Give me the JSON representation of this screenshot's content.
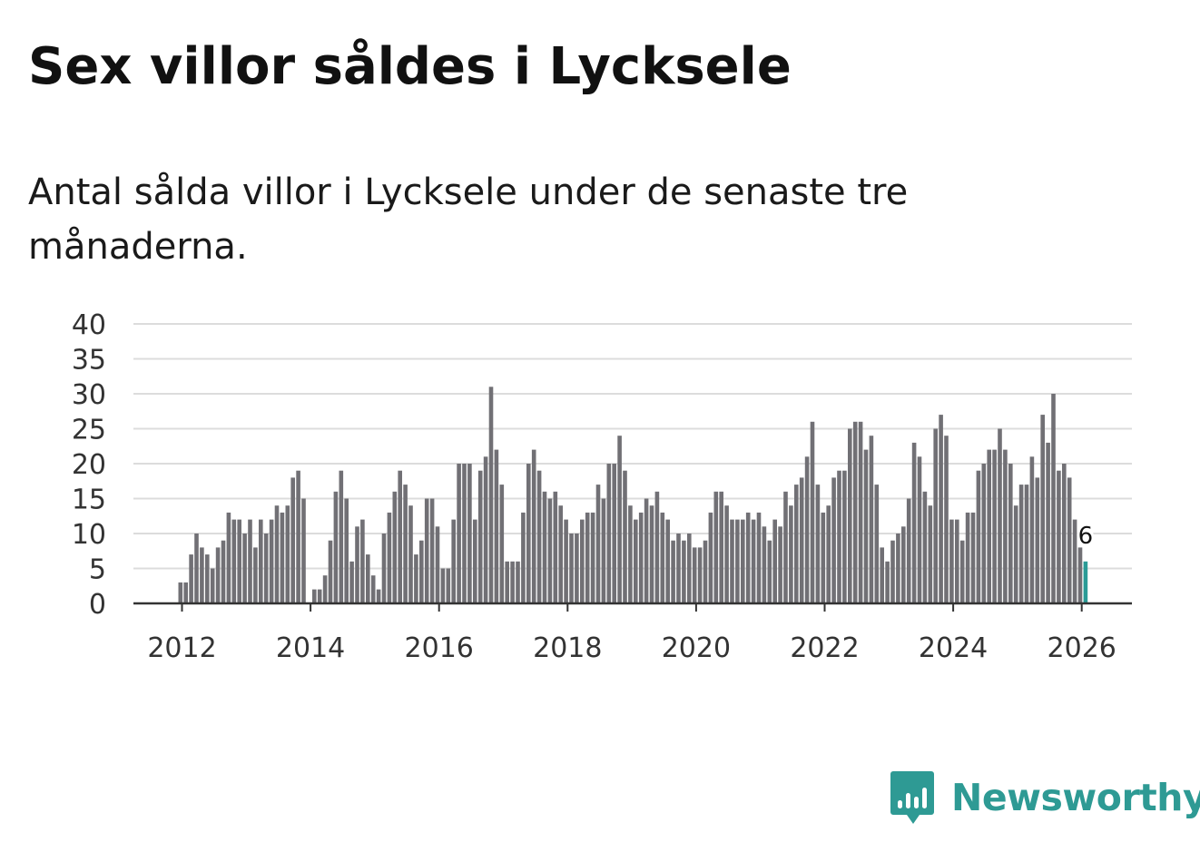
{
  "title": "Sex villor såldes i Lycksele",
  "subtitle": "Antal sålda villor i Lycksele under de senaste tre månaderna.",
  "brand": {
    "name": "Newsworthy",
    "icon": "newsworthy-logo-icon",
    "color": "#2e9a94"
  },
  "chart_data": {
    "type": "bar",
    "title": "Sex villor såldes i Lycksele",
    "subtitle": "Antal sålda villor i Lycksele under de senaste tre månaderna.",
    "xlabel": "",
    "ylabel": "",
    "ylim": [
      0,
      40
    ],
    "yticks": [
      "0",
      "5",
      "10",
      "15",
      "20",
      "25",
      "30",
      "35",
      "40"
    ],
    "xticks": [
      "2012",
      "2014",
      "2016",
      "2018",
      "2020",
      "2022",
      "2024",
      "2026"
    ],
    "grid": true,
    "start": "2012-01",
    "end": "2026-02",
    "bar_color": "#717075",
    "highlight_color": "#2a9b96",
    "highlight_label": "6",
    "values": [
      3,
      3,
      7,
      10,
      8,
      7,
      5,
      8,
      9,
      13,
      12,
      12,
      10,
      12,
      8,
      12,
      10,
      12,
      14,
      13,
      14,
      18,
      19,
      15,
      0,
      2,
      2,
      4,
      9,
      16,
      19,
      15,
      6,
      11,
      12,
      7,
      4,
      2,
      10,
      13,
      16,
      19,
      17,
      14,
      7,
      9,
      15,
      15,
      11,
      5,
      5,
      12,
      20,
      20,
      20,
      12,
      19,
      21,
      31,
      22,
      17,
      6,
      6,
      6,
      13,
      20,
      22,
      19,
      16,
      15,
      16,
      14,
      12,
      10,
      10,
      12,
      13,
      13,
      17,
      15,
      20,
      20,
      24,
      19,
      14,
      12,
      13,
      15,
      14,
      16,
      13,
      12,
      9,
      10,
      9,
      10,
      8,
      8,
      9,
      13,
      16,
      16,
      14,
      12,
      12,
      12,
      13,
      12,
      13,
      11,
      9,
      12,
      11,
      16,
      14,
      17,
      18,
      21,
      26,
      17,
      13,
      14,
      18,
      19,
      19,
      25,
      26,
      26,
      22,
      24,
      17,
      8,
      6,
      9,
      10,
      11,
      15,
      23,
      21,
      16,
      14,
      25,
      27,
      24,
      12,
      12,
      9,
      13,
      13,
      19,
      20,
      22,
      22,
      25,
      22,
      20,
      14,
      17,
      17,
      21,
      18,
      27,
      23,
      30,
      19,
      20,
      18,
      12,
      8,
      6
    ]
  }
}
